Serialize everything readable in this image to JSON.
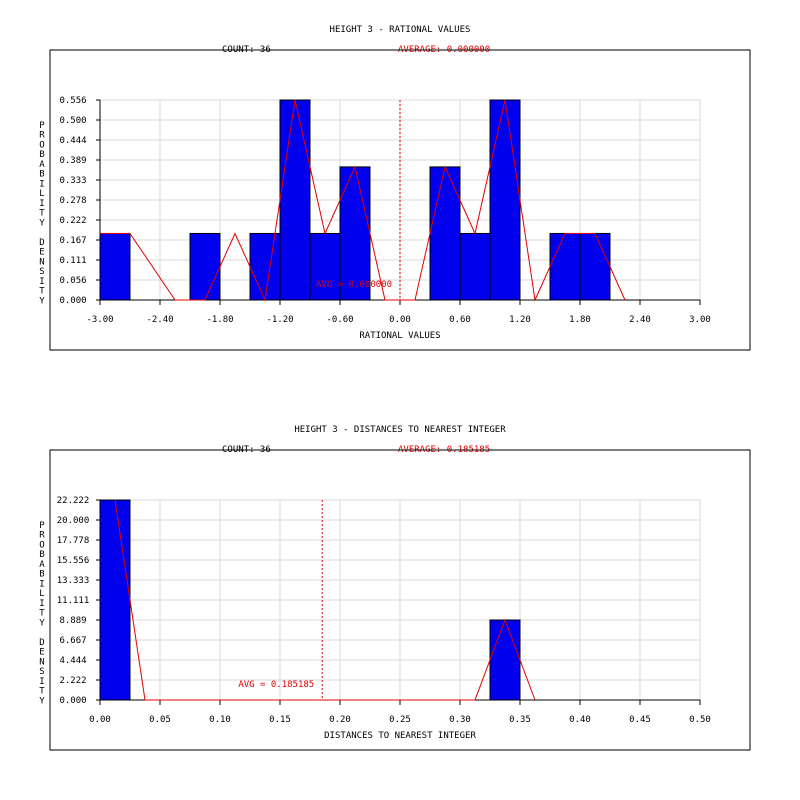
{
  "chart_data": [
    {
      "type": "bar",
      "title": "HEIGHT 3 - RATIONAL VALUES",
      "count_label": "COUNT: 36",
      "average_label": "AVERAGE: 0.000000",
      "avg_line_label": "AVG = 0.000000",
      "average": 0.0,
      "xlabel": "RATIONAL VALUES",
      "ylabel": "PROBABILITY DENSITY",
      "xlim": [
        -3.0,
        3.0
      ],
      "ylim": [
        0.0,
        0.556
      ],
      "x_ticks": [
        "-3.00",
        "-2.40",
        "-1.80",
        "-1.20",
        "-0.60",
        "0.00",
        "0.60",
        "1.20",
        "1.80",
        "2.40",
        "3.00"
      ],
      "y_ticks": [
        "0.000",
        "0.056",
        "0.111",
        "0.167",
        "0.222",
        "0.278",
        "0.333",
        "0.389",
        "0.444",
        "0.500",
        "0.556"
      ],
      "bin_width": 0.3,
      "bins": [
        {
          "x0": -3.0,
          "value": 0.185
        },
        {
          "x0": -2.1,
          "value": 0.185
        },
        {
          "x0": -1.5,
          "value": 0.185
        },
        {
          "x0": -1.2,
          "value": 0.556
        },
        {
          "x0": -0.9,
          "value": 0.185
        },
        {
          "x0": -0.6,
          "value": 0.37
        },
        {
          "x0": 0.3,
          "value": 0.37
        },
        {
          "x0": 0.6,
          "value": 0.185
        },
        {
          "x0": 0.9,
          "value": 0.556
        },
        {
          "x0": 1.5,
          "value": 0.185
        },
        {
          "x0": 1.8,
          "value": 0.185
        }
      ],
      "line_x": [
        -3.0,
        -2.7,
        -2.25,
        -1.95,
        -1.65,
        -1.35,
        -1.05,
        -0.75,
        -0.45,
        -0.15,
        0.15,
        0.45,
        0.75,
        1.05,
        1.35,
        1.65,
        1.95,
        2.25
      ],
      "line_y": [
        0.185,
        0.185,
        0.0,
        0.0,
        0.185,
        0.0,
        0.556,
        0.185,
        0.37,
        0.0,
        0.0,
        0.37,
        0.185,
        0.556,
        0.0,
        0.185,
        0.185,
        0.0
      ],
      "grid": true
    },
    {
      "type": "bar",
      "title": "HEIGHT 3 - DISTANCES TO NEAREST INTEGER",
      "count_label": "COUNT: 36",
      "average_label": "AVERAGE: 0.185185",
      "avg_line_label": "AVG = 0.185185",
      "average": 0.185185,
      "xlabel": "DISTANCES TO NEAREST INTEGER",
      "ylabel": "PROBABILITY DENSITY",
      "xlim": [
        0.0,
        0.5
      ],
      "ylim": [
        0.0,
        22.222
      ],
      "x_ticks": [
        "0.00",
        "0.05",
        "0.10",
        "0.15",
        "0.20",
        "0.25",
        "0.30",
        "0.35",
        "0.40",
        "0.45",
        "0.50"
      ],
      "y_ticks": [
        "0.000",
        "2.222",
        "4.444",
        "6.667",
        "8.889",
        "11.111",
        "13.333",
        "15.556",
        "17.778",
        "20.000",
        "22.222"
      ],
      "bin_width": 0.025,
      "bins": [
        {
          "x0": 0.0,
          "value": 22.222
        },
        {
          "x0": 0.325,
          "value": 8.889
        }
      ],
      "line_x": [
        0.0125,
        0.0375,
        0.3125,
        0.3375,
        0.3625
      ],
      "line_y": [
        22.222,
        0.0,
        0.0,
        8.889,
        0.0
      ],
      "grid": true
    }
  ]
}
